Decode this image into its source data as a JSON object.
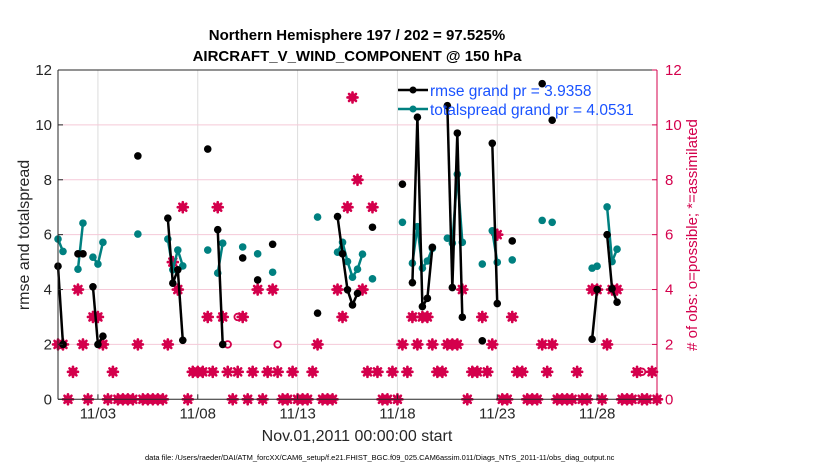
{
  "chart_data": {
    "type": "line",
    "title": [
      "Northern Hemisphere 197 / 202 = 97.525%",
      "AIRCRAFT_V_WIND_COMPONENT @ 150 hPa"
    ],
    "xlabel": "Nov.01,2011 00:00:00 start",
    "ylabel": "rmse and totalspread",
    "ylabel_right": "# of obs: o=possible; *=assimilated",
    "footnote": "data file: /Users/raeder/DAI/ATM_forcXX/CAM6_setup/f.e21.FHIST_BGC.f09_025.CAM6assim.011/Diags_NTrS_2011-11/obs_diag_output.nc",
    "x_unit": "days since Nov.01,2011 00:00:00",
    "xlim": [
      0,
      30
    ],
    "ylim": [
      0,
      12
    ],
    "ylim_right": [
      0,
      12
    ],
    "x_ticks": [
      {
        "day": 2,
        "label": "11/03"
      },
      {
        "day": 7,
        "label": "11/08"
      },
      {
        "day": 12,
        "label": "11/13"
      },
      {
        "day": 17,
        "label": "11/18"
      },
      {
        "day": 22,
        "label": "11/23"
      },
      {
        "day": 27,
        "label": "11/28"
      }
    ],
    "y_ticks": [
      "0",
      "2",
      "4",
      "6",
      "8",
      "10",
      "12"
    ],
    "y_ticks_right": [
      "0",
      "2",
      "4",
      "6",
      "8",
      "10",
      "12"
    ],
    "legend_placement": "top-right",
    "colors": {
      "rmse": "#000000",
      "totalspread": "#008080",
      "obs": "#d4004c",
      "legend_text": "#1a53ff"
    },
    "series": [
      {
        "name": "rmse grand pr = 3.9358",
        "key": "rmse",
        "points": [
          [
            0,
            4.85
          ],
          [
            0.25,
            2.0
          ],
          [
            1.0,
            5.3
          ],
          [
            1.25,
            5.3
          ],
          [
            1.75,
            4.1
          ],
          [
            2.0,
            2.0
          ],
          [
            2.25,
            2.3
          ],
          [
            4.0,
            8.87
          ],
          [
            5.5,
            6.6
          ],
          [
            5.75,
            4.23
          ],
          [
            6.0,
            4.72
          ],
          [
            6.25,
            2.15
          ],
          [
            7.5,
            9.12
          ],
          [
            8.0,
            6.18
          ],
          [
            8.25,
            2.0
          ],
          [
            9.25,
            5.15
          ],
          [
            10.0,
            4.35
          ],
          [
            10.75,
            5.65
          ],
          [
            13.0,
            3.14
          ],
          [
            14.0,
            6.66
          ],
          [
            14.25,
            5.3
          ],
          [
            14.5,
            3.99
          ],
          [
            14.75,
            3.44
          ],
          [
            15.0,
            3.86
          ],
          [
            15.75,
            6.27
          ],
          [
            17.25,
            7.84
          ],
          [
            17.75,
            4.25
          ],
          [
            18.0,
            10.28
          ],
          [
            18.25,
            3.38
          ],
          [
            18.5,
            3.68
          ],
          [
            18.75,
            5.54
          ],
          [
            19.5,
            10.7
          ],
          [
            19.75,
            4.07
          ],
          [
            20.0,
            9.7
          ],
          [
            20.25,
            2.99
          ],
          [
            21.25,
            2.13
          ],
          [
            21.75,
            9.33
          ],
          [
            22.0,
            3.49
          ],
          [
            22.75,
            5.77
          ],
          [
            24.25,
            11.5
          ],
          [
            24.75,
            10.17
          ],
          [
            26.75,
            2.19
          ],
          [
            27.0,
            4.0
          ],
          [
            27.5,
            6.0
          ],
          [
            27.75,
            4.03
          ],
          [
            28.0,
            3.54
          ]
        ]
      },
      {
        "name": "totalspread grand pr = 4.0531",
        "key": "totalspread",
        "points": [
          [
            0,
            5.84
          ],
          [
            0.25,
            5.39
          ],
          [
            1.0,
            4.74
          ],
          [
            1.25,
            6.42
          ],
          [
            1.75,
            5.18
          ],
          [
            2.0,
            4.93
          ],
          [
            2.25,
            5.72
          ],
          [
            4.0,
            6.02
          ],
          [
            5.5,
            5.84
          ],
          [
            5.75,
            4.72
          ],
          [
            6.0,
            5.44
          ],
          [
            6.25,
            4.86
          ],
          [
            7.5,
            5.44
          ],
          [
            8.0,
            4.6
          ],
          [
            8.25,
            5.69
          ],
          [
            9.25,
            5.55
          ],
          [
            10.0,
            5.3
          ],
          [
            10.75,
            4.63
          ],
          [
            13.0,
            6.64
          ],
          [
            14.0,
            5.36
          ],
          [
            14.25,
            5.72
          ],
          [
            14.5,
            5.02
          ],
          [
            14.75,
            4.45
          ],
          [
            15.0,
            4.74
          ],
          [
            15.25,
            5.29
          ],
          [
            15.75,
            4.39
          ],
          [
            17.25,
            6.45
          ],
          [
            17.75,
            4.96
          ],
          [
            18.0,
            6.29
          ],
          [
            18.25,
            4.78
          ],
          [
            18.5,
            5.04
          ],
          [
            18.75,
            5.5
          ],
          [
            19.5,
            5.87
          ],
          [
            19.75,
            5.69
          ],
          [
            20.0,
            8.2
          ],
          [
            20.25,
            5.72
          ],
          [
            21.25,
            4.93
          ],
          [
            21.75,
            6.14
          ],
          [
            22.0,
            4.99
          ],
          [
            22.75,
            5.08
          ],
          [
            24.25,
            6.52
          ],
          [
            24.75,
            6.45
          ],
          [
            26.75,
            4.78
          ],
          [
            27.0,
            4.85
          ],
          [
            27.5,
            7.01
          ],
          [
            27.75,
            5.02
          ],
          [
            28.0,
            5.47
          ]
        ]
      }
    ],
    "obs_step_days": 0.25,
    "obs_assimilated": [
      2,
      2,
      0,
      1,
      4,
      2,
      0,
      3,
      3,
      2,
      0,
      1,
      0,
      0,
      0,
      0,
      2,
      0,
      0,
      0,
      0,
      0,
      2,
      5,
      4,
      7,
      0,
      1,
      1,
      1,
      3,
      1,
      7,
      3,
      1,
      0,
      1,
      3,
      0,
      1,
      4,
      0,
      1,
      4,
      1,
      0,
      0,
      1,
      0,
      0,
      0,
      1,
      2,
      0,
      0,
      0,
      4,
      3,
      7,
      11,
      8,
      4,
      1,
      7,
      1,
      0,
      0,
      1,
      0,
      2,
      1,
      3,
      2,
      3,
      3,
      2,
      1,
      1,
      2,
      2,
      2,
      4,
      0,
      1,
      1,
      3,
      1,
      2,
      6,
      0,
      0,
      3,
      1,
      1,
      0,
      0,
      0,
      2,
      1,
      2,
      0,
      0,
      0,
      0,
      1,
      0,
      0,
      4,
      4,
      0,
      2,
      4,
      4,
      0,
      0,
      0,
      1,
      0,
      0,
      1,
      0
    ],
    "obs_possible": [
      2,
      2,
      0,
      1,
      4,
      2,
      0,
      3,
      3,
      2,
      0,
      1,
      0,
      0,
      0,
      0,
      2,
      0,
      0,
      0,
      0,
      0,
      2,
      5,
      4,
      7,
      0,
      1,
      1,
      1,
      3,
      1,
      7,
      3,
      2,
      0,
      3,
      3,
      0,
      1,
      4,
      0,
      1,
      4,
      2,
      0,
      0,
      1,
      0,
      0,
      0,
      1,
      2,
      0,
      0,
      0,
      4,
      3,
      7,
      11,
      8,
      4,
      1,
      7,
      1,
      0,
      0,
      1,
      0,
      2,
      1,
      3,
      2,
      3,
      3,
      2,
      1,
      1,
      2,
      2,
      2,
      4,
      0,
      1,
      1,
      3,
      1,
      2,
      6,
      0,
      0,
      3,
      1,
      1,
      0,
      0,
      0,
      2,
      1,
      2,
      0,
      0,
      0,
      0,
      1,
      0,
      0,
      4,
      4,
      0,
      2,
      4,
      4,
      0,
      0,
      0,
      1,
      1,
      0,
      1,
      0
    ]
  }
}
